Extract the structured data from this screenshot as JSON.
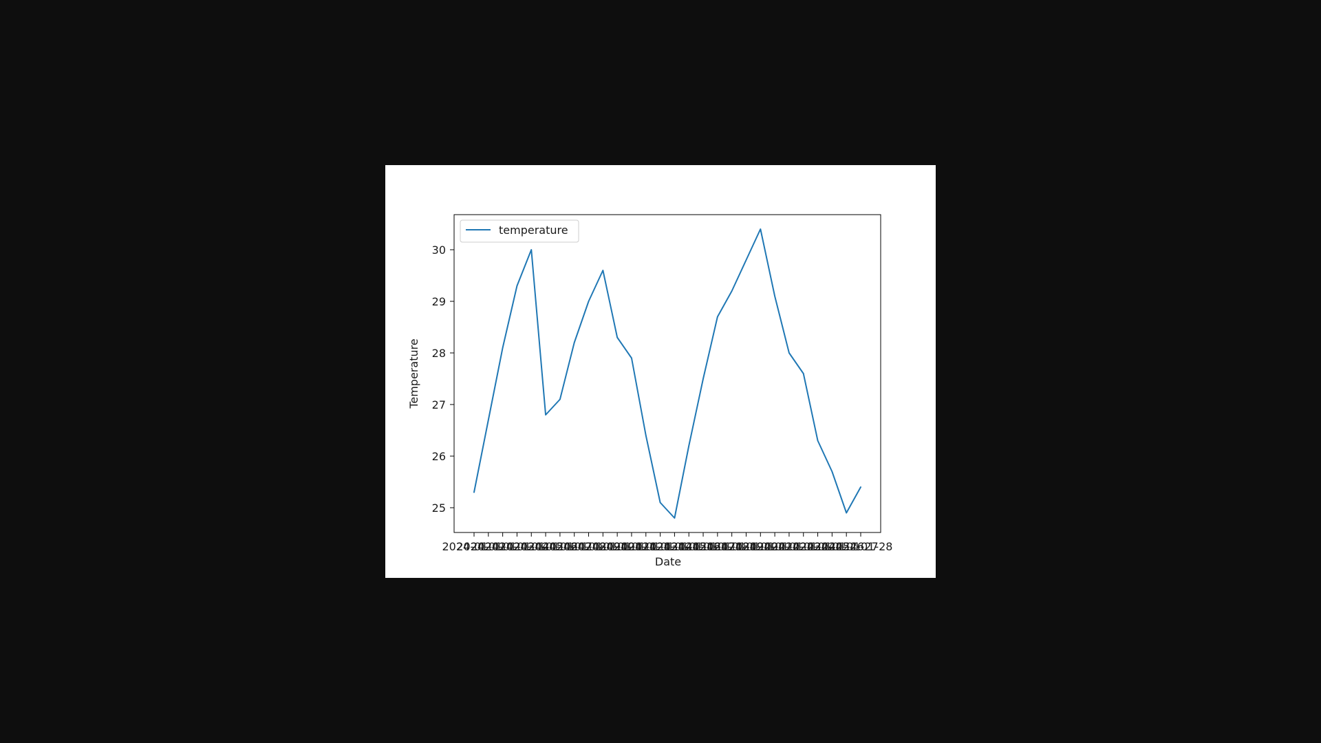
{
  "viewer": {
    "background": "#0e0e0e"
  },
  "chart_data": {
    "type": "line",
    "title": "",
    "xlabel": "Date",
    "ylabel": "Temperature",
    "x_tick_labels": [
      "2024-01-01",
      "2024-01-02",
      "2024-01-03",
      "2024-01-04",
      "2024-01-05",
      "2024-01-06",
      "2024-01-07",
      "2024-01-08",
      "2024-01-09",
      "2024-01-10",
      "2024-01-11",
      "2024-01-12",
      "2024-01-13",
      "2024-01-14",
      "2024-01-15",
      "2024-01-16",
      "2024-01-17",
      "2024-01-18",
      "2024-01-19",
      "2024-01-20",
      "2024-01-21",
      "2024-01-22",
      "2024-01-23",
      "2024-01-24",
      "2024-01-25",
      "2024-01-26",
      "2024-01-27",
      "2024-01-28"
    ],
    "y_ticks": [
      25,
      26,
      27,
      28,
      29,
      30
    ],
    "ylim": [
      24.52,
      30.68
    ],
    "series": [
      {
        "name": "temperature",
        "color": "#1f77b4",
        "values": [
          25.3,
          26.7,
          28.1,
          29.3,
          30.0,
          26.8,
          27.1,
          28.2,
          29.0,
          29.6,
          28.3,
          27.9,
          26.4,
          25.1,
          24.8,
          26.2,
          27.5,
          28.7,
          29.2,
          29.8,
          30.4,
          29.1,
          28.0,
          27.6,
          26.3,
          25.7,
          24.9,
          25.4
        ]
      }
    ],
    "legend": {
      "placement": "upper-left",
      "entries": [
        "temperature"
      ]
    },
    "grid": false
  }
}
